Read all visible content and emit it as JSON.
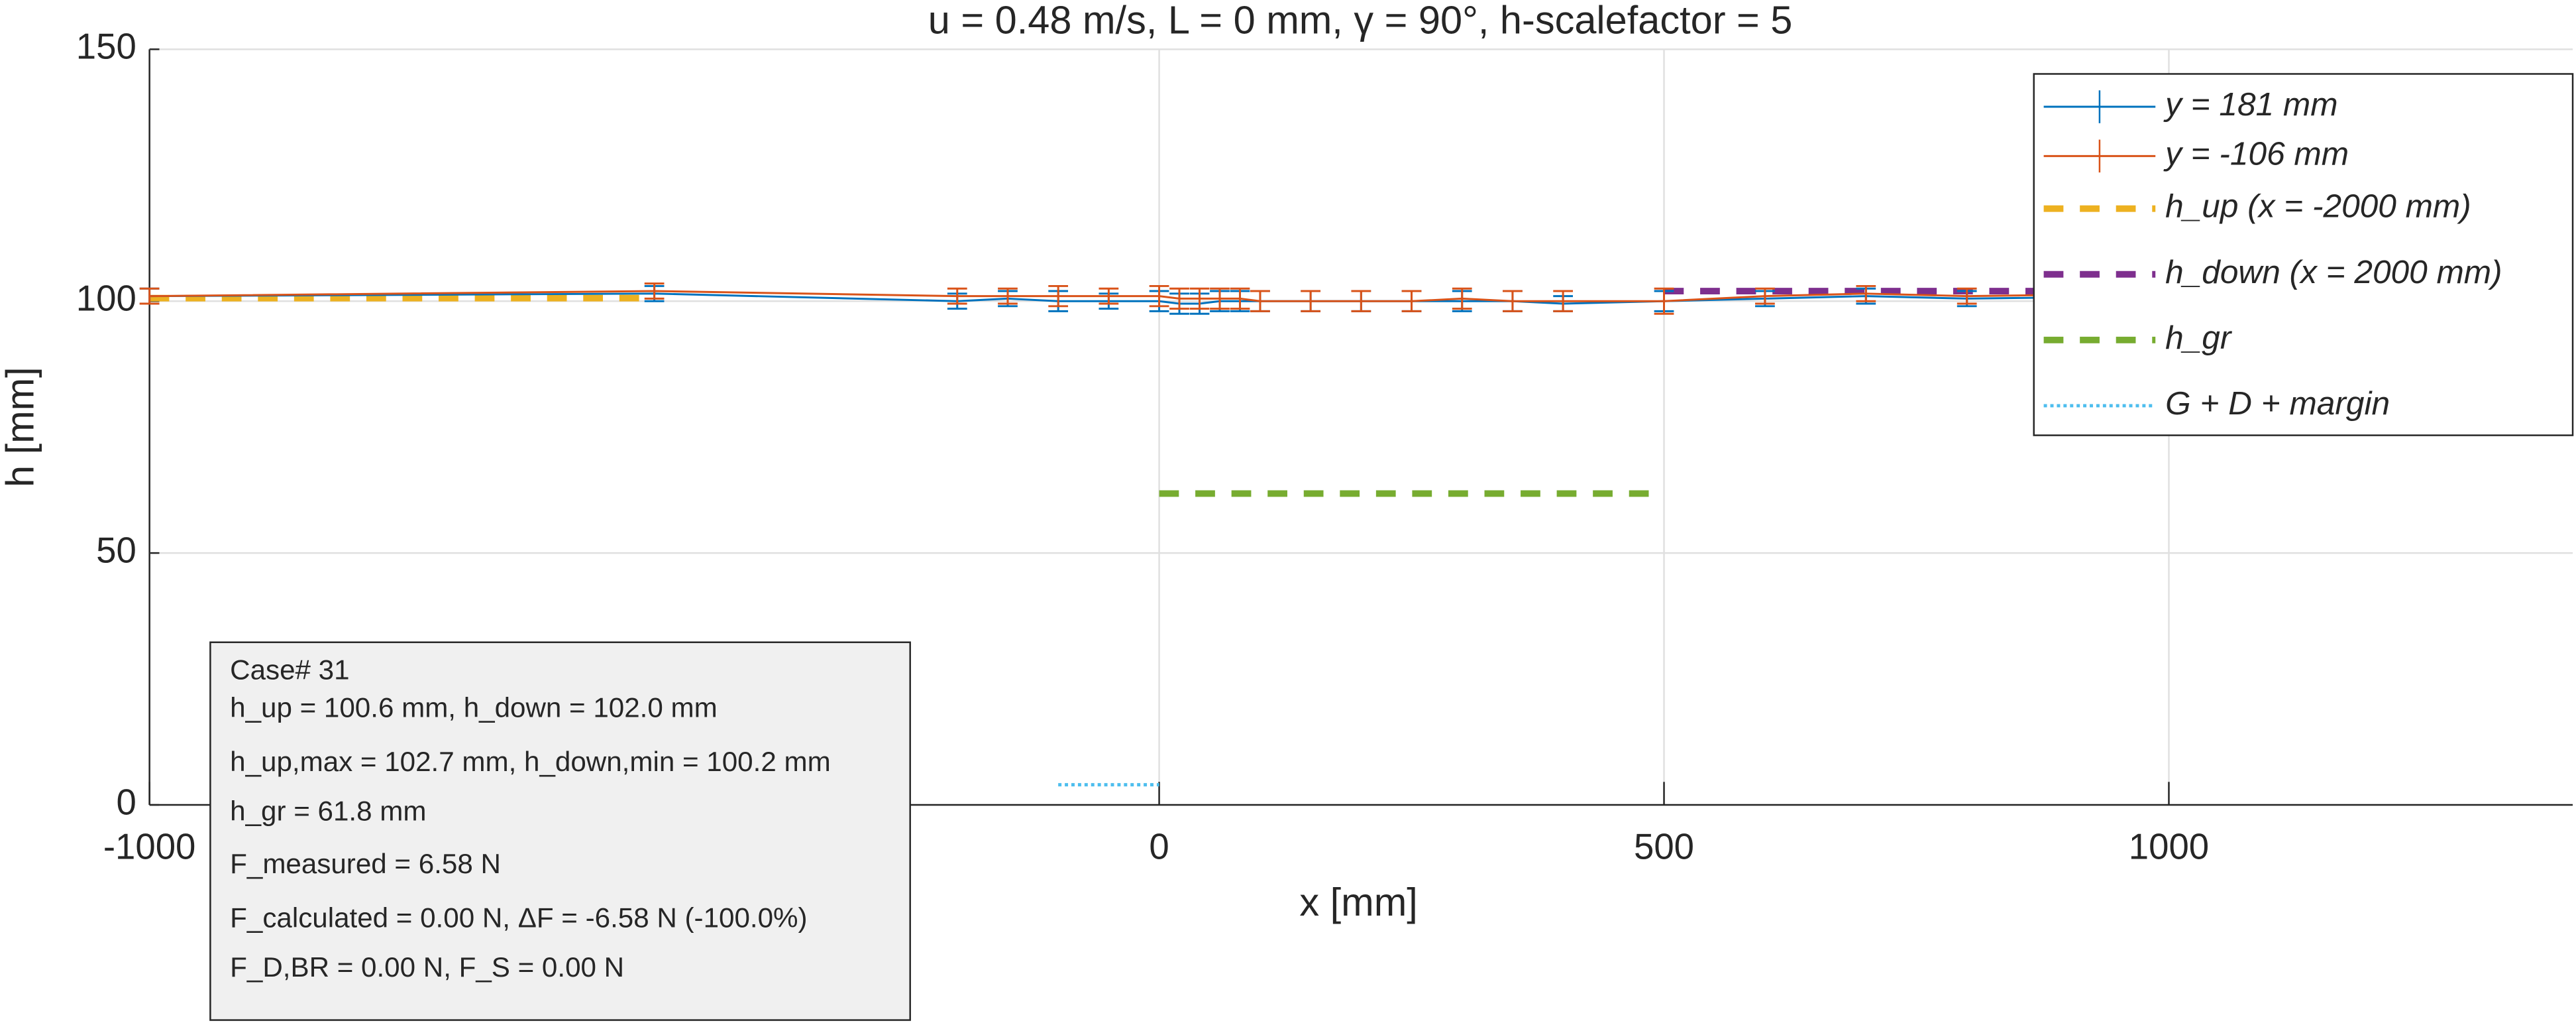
{
  "chart_data": {
    "type": "line",
    "title": "u = 0.48 m/s, L = 0 mm, γ = 90°, h-scalefactor = 5",
    "xlabel": "x [mm]",
    "ylabel": "h [mm]",
    "xlim": [
      -1000,
      1400
    ],
    "ylim": [
      0,
      150
    ],
    "xticks": [
      -1000,
      0,
      500,
      1000
    ],
    "yticks": [
      0,
      50,
      100,
      150
    ],
    "grid": true,
    "x": [
      -1000,
      -500,
      -200,
      -150,
      -100,
      -50,
      0,
      20,
      40,
      60,
      80,
      100,
      150,
      200,
      250,
      300,
      350,
      400,
      500,
      600,
      700,
      800,
      1000,
      1200
    ],
    "series": [
      {
        "name": "y = 181 mm",
        "color": "#0072bd",
        "values": [
          101,
          101.5,
          100,
          100.5,
          100,
          100,
          100,
          99.5,
          99.5,
          100,
          100,
          100,
          100,
          100,
          100,
          100,
          100,
          99.5,
          100,
          100.5,
          101,
          100.5,
          101,
          101.5
        ],
        "errors": [
          1.5,
          1.5,
          1.5,
          1.5,
          2,
          1.5,
          2,
          2,
          2,
          2,
          2,
          2,
          2,
          2,
          2,
          2,
          2,
          1.5,
          2,
          1.5,
          1.5,
          1.5,
          1.5,
          1.5
        ]
      },
      {
        "name": "y = -106 mm",
        "color": "#d95319",
        "values": [
          101,
          102,
          101,
          101,
          101,
          101,
          101,
          100.5,
          100.5,
          100.5,
          100.5,
          100,
          100,
          100,
          100,
          100.5,
          100,
          100,
          100,
          101,
          101.5,
          101,
          101.5,
          102
        ],
        "errors": [
          1.5,
          1.5,
          1.5,
          1.5,
          2,
          1.5,
          2,
          2,
          2,
          2,
          2,
          2,
          2,
          2,
          2,
          2,
          2,
          2,
          2.5,
          1.5,
          1.5,
          1.5,
          1.5,
          1.5
        ]
      }
    ],
    "reference_lines": [
      {
        "name": "h_up (x = -2000 mm)",
        "color": "#edb120",
        "x": [
          -1000,
          -500
        ],
        "value": 100.6,
        "style": "dashed"
      },
      {
        "name": "h_down (x = 2000 mm)",
        "color": "#7e2f8e",
        "x": [
          500,
          1400
        ],
        "value": 102.0,
        "style": "dashed"
      },
      {
        "name": "h_gr",
        "color": "#77ac30",
        "x": [
          0,
          500
        ],
        "value": 61.8,
        "style": "dashed"
      },
      {
        "name": "G + D + margin",
        "color": "#4dbeee",
        "x": [
          -100,
          0
        ],
        "value": 4,
        "style": "dotted"
      }
    ],
    "legend": "upper right",
    "annotation": [
      "Case# 31",
      "h_up = 100.6 mm, h_down = 102.0 mm",
      "h_up,max = 102.7 mm, h_down,min = 100.2 mm",
      "h_gr = 61.8 mm",
      "F_measured = 6.58 N",
      "F_calculated = 0.00 N, ΔF = -6.58 N (-100.0%)",
      "F_D,BR = 0.00 N, F_S = 0.00 N"
    ]
  }
}
